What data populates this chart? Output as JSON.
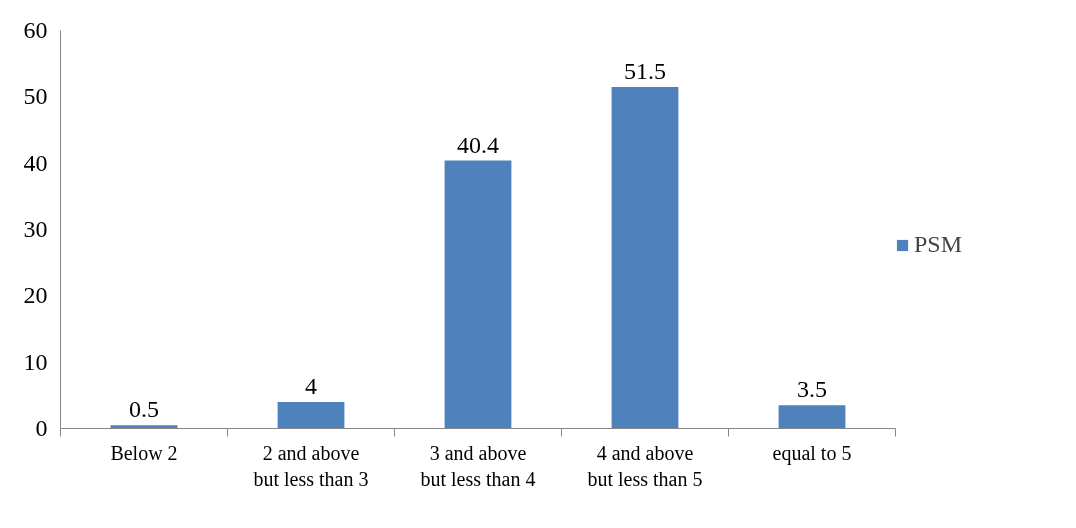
{
  "chart_data": {
    "type": "bar",
    "categories": [
      "Below 2",
      "2 and above\nbut less than 3",
      "3 and above\nbut less than 4",
      "4 and above\nbut less than 5",
      "equal to 5"
    ],
    "series": [
      {
        "name": "PSM",
        "color": "#4f81bd",
        "values": [
          0.5,
          4,
          40.4,
          51.5,
          3.5
        ]
      }
    ],
    "ylim": [
      0,
      60
    ],
    "yticks": [
      0,
      10,
      20,
      30,
      40,
      50,
      60
    ],
    "grid": false,
    "legend": "right",
    "data_labels": true
  }
}
